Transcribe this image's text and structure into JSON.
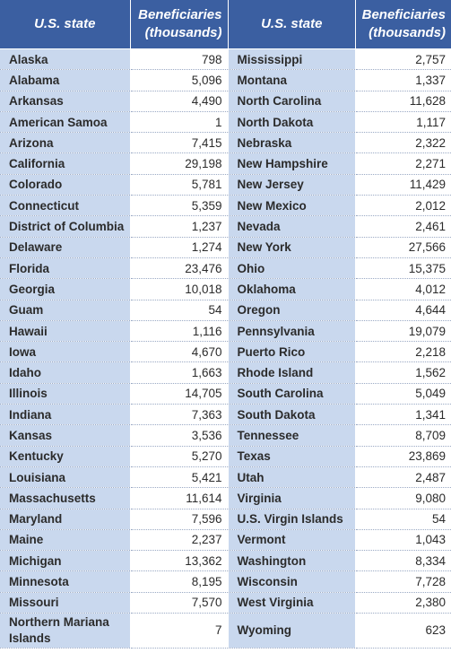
{
  "header": {
    "state_label": "U.S. state",
    "value_label_line1": "Beneficiaries",
    "value_label_line2": "(thousands)"
  },
  "left_rows": [
    {
      "state": "Alaska",
      "value": "798"
    },
    {
      "state": "Alabama",
      "value": "5,096"
    },
    {
      "state": "Arkansas",
      "value": "4,490"
    },
    {
      "state": "American Samoa",
      "value": "1"
    },
    {
      "state": "Arizona",
      "value": "7,415"
    },
    {
      "state": "California",
      "value": "29,198"
    },
    {
      "state": "Colorado",
      "value": "5,781"
    },
    {
      "state": "Connecticut",
      "value": "5,359"
    },
    {
      "state": "District of Columbia",
      "value": "1,237"
    },
    {
      "state": "Delaware",
      "value": "1,274"
    },
    {
      "state": "Florida",
      "value": "23,476"
    },
    {
      "state": "Georgia",
      "value": "10,018"
    },
    {
      "state": "Guam",
      "value": "54"
    },
    {
      "state": "Hawaii",
      "value": "1,116"
    },
    {
      "state": "Iowa",
      "value": "4,670"
    },
    {
      "state": "Idaho",
      "value": "1,663"
    },
    {
      "state": "Illinois",
      "value": "14,705"
    },
    {
      "state": "Indiana",
      "value": "7,363"
    },
    {
      "state": "Kansas",
      "value": "3,536"
    },
    {
      "state": "Kentucky",
      "value": "5,270"
    },
    {
      "state": "Louisiana",
      "value": "5,421"
    },
    {
      "state": "Massachusetts",
      "value": "11,614"
    },
    {
      "state": "Maryland",
      "value": "7,596"
    },
    {
      "state": "Maine",
      "value": "2,237"
    },
    {
      "state": "Michigan",
      "value": "13,362"
    },
    {
      "state": "Minnesota",
      "value": "8,195"
    },
    {
      "state": "Missouri",
      "value": "7,570"
    },
    {
      "state": "Northern Mariana Islands",
      "value": "7"
    }
  ],
  "right_rows": [
    {
      "state": "Mississippi",
      "value": "2,757"
    },
    {
      "state": "Montana",
      "value": "1,337"
    },
    {
      "state": "North Carolina",
      "value": "11,628"
    },
    {
      "state": "North Dakota",
      "value": "1,117"
    },
    {
      "state": "Nebraska",
      "value": "2,322"
    },
    {
      "state": "New Hampshire",
      "value": "2,271"
    },
    {
      "state": "New Jersey",
      "value": "11,429"
    },
    {
      "state": "New Mexico",
      "value": "2,012"
    },
    {
      "state": "Nevada",
      "value": "2,461"
    },
    {
      "state": "New York",
      "value": "27,566"
    },
    {
      "state": "Ohio",
      "value": "15,375"
    },
    {
      "state": "Oklahoma",
      "value": "4,012"
    },
    {
      "state": "Oregon",
      "value": "4,644"
    },
    {
      "state": "Pennsylvania",
      "value": "19,079"
    },
    {
      "state": "Puerto Rico",
      "value": "2,218"
    },
    {
      "state": "Rhode Island",
      "value": "1,562"
    },
    {
      "state": "South Carolina",
      "value": "5,049"
    },
    {
      "state": "South Dakota",
      "value": "1,341"
    },
    {
      "state": "Tennessee",
      "value": "8,709"
    },
    {
      "state": "Texas",
      "value": "23,869"
    },
    {
      "state": "Utah",
      "value": "2,487"
    },
    {
      "state": "Virginia",
      "value": "9,080"
    },
    {
      "state": "U.S. Virgin Islands",
      "value": "54"
    },
    {
      "state": "Vermont",
      "value": "1,043"
    },
    {
      "state": "Washington",
      "value": "8,334"
    },
    {
      "state": "Wisconsin",
      "value": "7,728"
    },
    {
      "state": "West Virginia",
      "value": "2,380"
    },
    {
      "state": "Wyoming",
      "value": "623"
    }
  ]
}
